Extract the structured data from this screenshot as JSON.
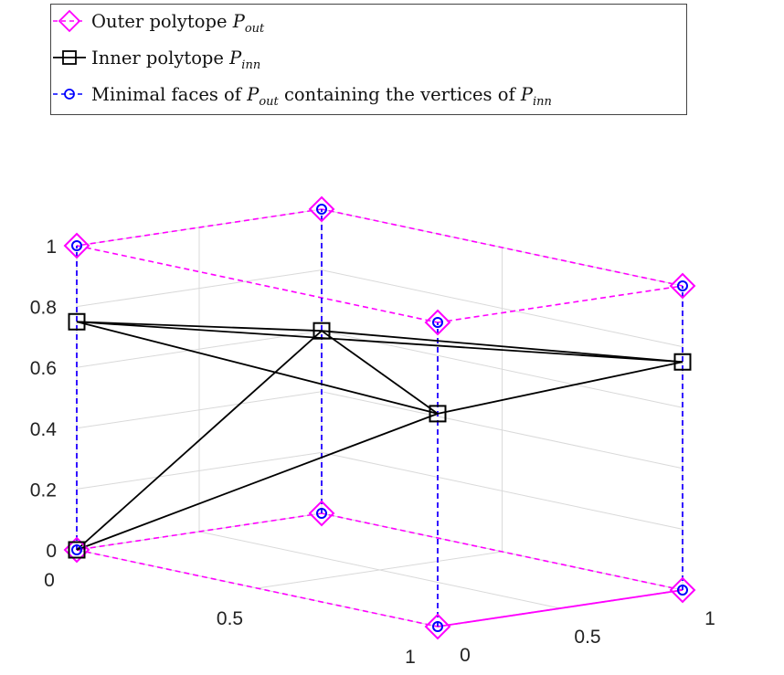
{
  "chart_data": {
    "type": "line3d",
    "title": "",
    "xlabel": "",
    "ylabel": "",
    "zlabel": "",
    "xlim": [
      0,
      1
    ],
    "ylim": [
      0,
      1
    ],
    "zlim": [
      0,
      1
    ],
    "grid": true,
    "legend_position": "top-left",
    "ticks": {
      "x": [
        {
          "value": 0,
          "label": "0"
        },
        {
          "value": 0.5,
          "label": "0.5"
        },
        {
          "value": 1,
          "label": "1"
        }
      ],
      "y": [
        {
          "value": 0,
          "label": "0"
        },
        {
          "value": 0.5,
          "label": "0.5"
        },
        {
          "value": 1,
          "label": "1"
        }
      ],
      "z": [
        {
          "value": 0,
          "label": "0"
        },
        {
          "value": 0.2,
          "label": "0.2"
        },
        {
          "value": 0.4,
          "label": "0.4"
        },
        {
          "value": 0.6,
          "label": "0.6"
        },
        {
          "value": 0.8,
          "label": "0.8"
        },
        {
          "value": 1,
          "label": "1"
        }
      ]
    },
    "series": [
      {
        "name": "Outer polytope",
        "legend_main": "Outer polytope",
        "legend_symbol": "P",
        "legend_subscript": "out",
        "color": "#ff00ff",
        "line_style": "dashed",
        "marker": "diamond",
        "vertices": [
          [
            0,
            0,
            0
          ],
          [
            1,
            0,
            0
          ],
          [
            1,
            1,
            0
          ],
          [
            0,
            1,
            0
          ],
          [
            0,
            0,
            1
          ],
          [
            1,
            0,
            1
          ],
          [
            1,
            1,
            1
          ],
          [
            0,
            1,
            1
          ]
        ],
        "edges": [
          [
            0,
            1
          ],
          [
            1,
            2
          ],
          [
            2,
            3
          ],
          [
            3,
            0
          ],
          [
            4,
            5
          ],
          [
            5,
            6
          ],
          [
            6,
            7
          ],
          [
            7,
            4
          ],
          [
            0,
            4
          ],
          [
            1,
            5
          ],
          [
            2,
            6
          ],
          [
            3,
            7
          ]
        ]
      },
      {
        "name": "Inner polytope",
        "legend_main": "Inner polytope",
        "legend_symbol": "P",
        "legend_subscript": "inn",
        "color": "#000000",
        "line_style": "solid",
        "marker": "square",
        "vertices": [
          [
            0,
            0,
            0.75
          ],
          [
            1,
            1,
            0.75
          ],
          [
            1,
            0,
            0.7
          ],
          [
            0,
            1,
            0.6
          ],
          [
            0,
            0,
            0
          ]
        ],
        "edges": [
          [
            0,
            1
          ],
          [
            0,
            2
          ],
          [
            0,
            3
          ],
          [
            1,
            2
          ],
          [
            1,
            3
          ],
          [
            2,
            3
          ],
          [
            4,
            2
          ],
          [
            4,
            3
          ]
        ]
      },
      {
        "name": "Minimal faces",
        "legend_main": "Minimal faces of",
        "legend_symbol": "P",
        "legend_subscript": "out",
        "legend_tail": "containing the vertices of",
        "legend_symbol2": "P",
        "legend_subscript2": "inn",
        "color": "#0000ff",
        "line_style": "dashed",
        "marker": "circle",
        "points": [
          [
            0,
            0,
            0
          ],
          [
            1,
            0,
            0
          ],
          [
            1,
            1,
            0
          ],
          [
            0,
            1,
            0
          ],
          [
            0,
            0,
            1
          ],
          [
            1,
            0,
            1
          ],
          [
            1,
            1,
            1
          ],
          [
            0,
            1,
            1
          ]
        ],
        "segments": [
          [
            [
              0,
              0,
              0
            ],
            [
              0,
              0,
              1
            ]
          ],
          [
            [
              1,
              0,
              0
            ],
            [
              1,
              0,
              1
            ]
          ],
          [
            [
              1,
              1,
              0
            ],
            [
              1,
              1,
              1
            ]
          ],
          [
            [
              0,
              1,
              0
            ],
            [
              0,
              1,
              1
            ]
          ]
        ]
      }
    ],
    "floor_edge_overlay": [
      [
        [
          1,
          0,
          0
        ],
        [
          1,
          1,
          0
        ]
      ]
    ]
  }
}
